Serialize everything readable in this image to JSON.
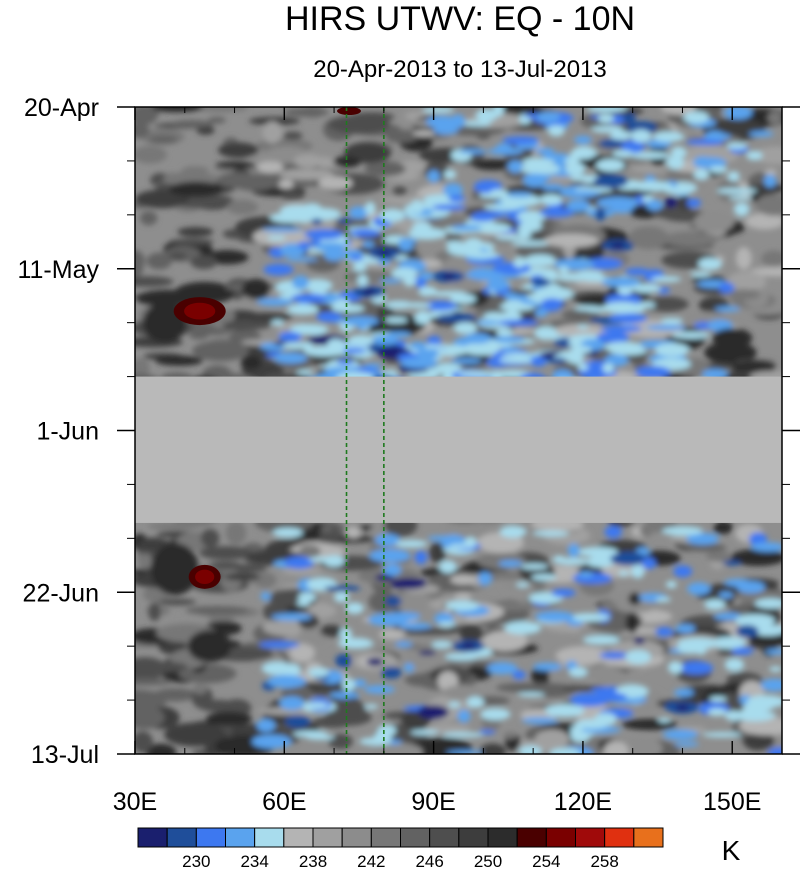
{
  "chart_data": {
    "type": "heatmap",
    "title": "HIRS UTWV: EQ - 10N",
    "subtitle": "20-Apr-2013 to 13-Jul-2013",
    "xlabel": "",
    "ylabel": "",
    "x_ticks": [
      "30E",
      "60E",
      "90E",
      "120E",
      "150E"
    ],
    "x_tick_values": [
      30,
      60,
      90,
      120,
      150
    ],
    "xlim": [
      30,
      160
    ],
    "y_ticks": [
      "20-Apr",
      "11-May",
      "1-Jun",
      "22-Jun",
      "13-Jul"
    ],
    "y_range": [
      "20-Apr-2013",
      "13-Jul-2013"
    ],
    "y_axis_direction": "time increases downward",
    "missing_data_period": [
      "25-May-2013",
      "13-Jun-2013"
    ],
    "reference_lines_longitude": [
      72.5,
      80
    ],
    "reference_line_style": "dashed green vertical",
    "colorbar": {
      "unit": "K",
      "labels": [
        "230",
        "234",
        "238",
        "242",
        "246",
        "250",
        "254",
        "258"
      ],
      "colors": [
        "#1a1f6e",
        "#1f4e9a",
        "#3d78f0",
        "#5aa3ee",
        "#a8dced",
        "#b4b4b4",
        "#a0a0a0",
        "#8c8c8c",
        "#777777",
        "#626262",
        "#4e4e4e",
        "#3d3d3d",
        "#2c2c2c",
        "#4a0000",
        "#7a0000",
        "#a00a0a",
        "#e03010",
        "#e8701c"
      ]
    },
    "features": [
      {
        "name": "warm core 40-45E May",
        "value_range": "254-258"
      },
      {
        "name": "warm core 40-45E June",
        "value_range": "254-258"
      },
      {
        "name": "cold band 60-110E mid-May",
        "value_range": "226-234"
      },
      {
        "name": "cold band 60-120E early July",
        "value_range": "226-234"
      }
    ]
  }
}
